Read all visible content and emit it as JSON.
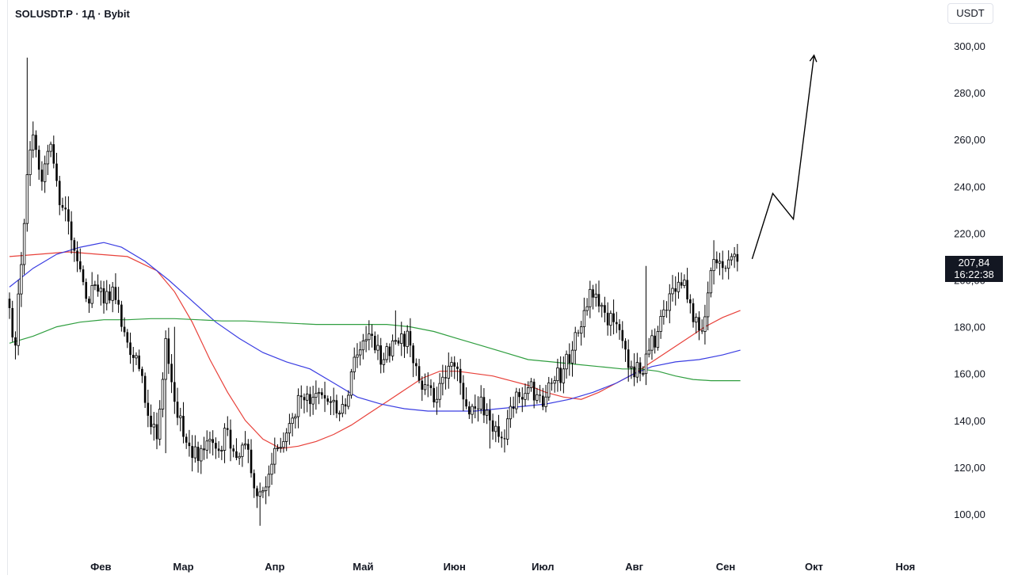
{
  "header": {
    "symbol_title": "SOLUSDT.P · 1Д · Bybit",
    "currency_button": "USDT"
  },
  "price_badge": {
    "price": "207,84",
    "countdown": "16:22:38"
  },
  "colors": {
    "candle": "#000000",
    "ma_red": "#e8413a",
    "ma_blue": "#3a3de2",
    "ma_green": "#2f9e3f",
    "projection": "#000000",
    "badge_bg": "#131722"
  },
  "chart_data": {
    "type": "candlestick",
    "symbol": "SOLUSDT.P",
    "interval": "1Д",
    "exchange": "Bybit",
    "y_axis": {
      "ticks": [
        100,
        120,
        140,
        160,
        180,
        200,
        220,
        240,
        260,
        280,
        300
      ],
      "tick_labels": [
        "100,00",
        "120,00",
        "140,00",
        "160,00",
        "180,00",
        "200,00",
        "220,00",
        "240,00",
        "260,00",
        "280,00",
        "300,00"
      ],
      "ylim": [
        89,
        318
      ]
    },
    "x_axis": {
      "labels": [
        "Фев",
        "Мар",
        "Апр",
        "Май",
        "Июн",
        "Июл",
        "Авг",
        "Сен",
        "Окт",
        "Ноя"
      ],
      "label_days": [
        31,
        59,
        90,
        120,
        151,
        181,
        212,
        243,
        273,
        304
      ],
      "xlim": [
        0,
        330
      ]
    },
    "last_price": 207.84,
    "close_anchors": [
      [
        0,
        188
      ],
      [
        2,
        172
      ],
      [
        6,
        245
      ],
      [
        8,
        262
      ],
      [
        11,
        242
      ],
      [
        14,
        258
      ],
      [
        17,
        232
      ],
      [
        20,
        225
      ],
      [
        23,
        208
      ],
      [
        26,
        192
      ],
      [
        29,
        198
      ],
      [
        32,
        190
      ],
      [
        35,
        197
      ],
      [
        38,
        180
      ],
      [
        41,
        168
      ],
      [
        44,
        162
      ],
      [
        47,
        142
      ],
      [
        50,
        132
      ],
      [
        53,
        175
      ],
      [
        56,
        148
      ],
      [
        59,
        133
      ],
      [
        62,
        124
      ],
      [
        65,
        128
      ],
      [
        68,
        132
      ],
      [
        71,
        127
      ],
      [
        74,
        136
      ],
      [
        77,
        124
      ],
      [
        80,
        130
      ],
      [
        83,
        111
      ],
      [
        86,
        110
      ],
      [
        88,
        117
      ],
      [
        90,
        128
      ],
      [
        93,
        131
      ],
      [
        96,
        141
      ],
      [
        99,
        150
      ],
      [
        102,
        147
      ],
      [
        105,
        152
      ],
      [
        108,
        148
      ],
      [
        111,
        143
      ],
      [
        114,
        146
      ],
      [
        117,
        167
      ],
      [
        120,
        174
      ],
      [
        122,
        177
      ],
      [
        124,
        170
      ],
      [
        127,
        166
      ],
      [
        130,
        174
      ],
      [
        133,
        177
      ],
      [
        136,
        172
      ],
      [
        139,
        157
      ],
      [
        142,
        155
      ],
      [
        145,
        149
      ],
      [
        148,
        158
      ],
      [
        151,
        163
      ],
      [
        154,
        149
      ],
      [
        157,
        146
      ],
      [
        160,
        150
      ],
      [
        163,
        140
      ],
      [
        166,
        133
      ],
      [
        168,
        132
      ],
      [
        170,
        146
      ],
      [
        173,
        150
      ],
      [
        176,
        154
      ],
      [
        179,
        151
      ],
      [
        182,
        150
      ],
      [
        185,
        157
      ],
      [
        188,
        162
      ],
      [
        191,
        170
      ],
      [
        194,
        180
      ],
      [
        197,
        196
      ],
      [
        199,
        194
      ],
      [
        202,
        186
      ],
      [
        205,
        182
      ],
      [
        208,
        174
      ],
      [
        211,
        163
      ],
      [
        214,
        160
      ],
      [
        217,
        170
      ],
      [
        220,
        178
      ],
      [
        223,
        187
      ],
      [
        226,
        195
      ],
      [
        229,
        200
      ],
      [
        232,
        182
      ],
      [
        235,
        178
      ],
      [
        238,
        204
      ],
      [
        241,
        208
      ],
      [
        243,
        205
      ],
      [
        245,
        210
      ],
      [
        247,
        207.84
      ]
    ],
    "highs_lows_note": "each candle spans ±~3.5 around body",
    "extreme_highs": [
      [
        6,
        295
      ],
      [
        56,
        180
      ],
      [
        131,
        187
      ],
      [
        216,
        206
      ],
      [
        239,
        217
      ]
    ],
    "extreme_lows": [
      [
        85,
        95
      ],
      [
        163,
        128
      ],
      [
        213,
        156
      ],
      [
        53,
        126
      ]
    ],
    "moving_averages": [
      {
        "color_key": "ma_red",
        "points": [
          [
            0,
            210
          ],
          [
            10,
            211
          ],
          [
            20,
            212
          ],
          [
            30,
            211
          ],
          [
            40,
            210
          ],
          [
            50,
            204
          ],
          [
            56,
            195
          ],
          [
            62,
            182
          ],
          [
            68,
            166
          ],
          [
            74,
            152
          ],
          [
            80,
            140
          ],
          [
            86,
            132
          ],
          [
            92,
            128
          ],
          [
            98,
            129
          ],
          [
            104,
            131
          ],
          [
            110,
            134
          ],
          [
            116,
            138
          ],
          [
            122,
            143
          ],
          [
            128,
            148
          ],
          [
            134,
            153
          ],
          [
            140,
            158
          ],
          [
            146,
            161
          ],
          [
            152,
            161
          ],
          [
            158,
            160
          ],
          [
            164,
            159
          ],
          [
            170,
            157
          ],
          [
            176,
            155
          ],
          [
            182,
            152
          ],
          [
            188,
            150
          ],
          [
            194,
            149
          ],
          [
            200,
            152
          ],
          [
            206,
            156
          ],
          [
            212,
            160
          ],
          [
            218,
            165
          ],
          [
            224,
            170
          ],
          [
            230,
            175
          ],
          [
            236,
            180
          ],
          [
            242,
            184
          ],
          [
            248,
            187
          ]
        ]
      },
      {
        "color_key": "ma_blue",
        "points": [
          [
            0,
            197
          ],
          [
            8,
            205
          ],
          [
            16,
            211
          ],
          [
            24,
            214
          ],
          [
            32,
            216
          ],
          [
            38,
            214
          ],
          [
            46,
            208
          ],
          [
            54,
            200
          ],
          [
            62,
            191
          ],
          [
            70,
            182
          ],
          [
            78,
            175
          ],
          [
            86,
            169
          ],
          [
            94,
            165
          ],
          [
            102,
            162
          ],
          [
            110,
            156
          ],
          [
            118,
            150
          ],
          [
            126,
            147
          ],
          [
            134,
            145
          ],
          [
            142,
            144
          ],
          [
            150,
            144
          ],
          [
            158,
            144
          ],
          [
            166,
            145
          ],
          [
            174,
            146
          ],
          [
            182,
            147
          ],
          [
            190,
            149
          ],
          [
            198,
            152
          ],
          [
            206,
            156
          ],
          [
            212,
            160
          ],
          [
            218,
            163
          ],
          [
            226,
            165
          ],
          [
            234,
            166
          ],
          [
            242,
            168
          ],
          [
            248,
            170
          ]
        ]
      },
      {
        "color_key": "ma_green",
        "points": [
          [
            0,
            173
          ],
          [
            8,
            176
          ],
          [
            16,
            180
          ],
          [
            24,
            182
          ],
          [
            32,
            183
          ],
          [
            40,
            183
          ],
          [
            48,
            183.5
          ],
          [
            56,
            183.5
          ],
          [
            64,
            183
          ],
          [
            72,
            182.5
          ],
          [
            80,
            182.5
          ],
          [
            88,
            182
          ],
          [
            96,
            181.5
          ],
          [
            104,
            181
          ],
          [
            112,
            181
          ],
          [
            120,
            181
          ],
          [
            128,
            181
          ],
          [
            136,
            180
          ],
          [
            144,
            178
          ],
          [
            152,
            175
          ],
          [
            160,
            172
          ],
          [
            168,
            169
          ],
          [
            176,
            166
          ],
          [
            184,
            165
          ],
          [
            192,
            164
          ],
          [
            200,
            163
          ],
          [
            208,
            162
          ],
          [
            214,
            162
          ],
          [
            220,
            161
          ],
          [
            226,
            159
          ],
          [
            232,
            157.5
          ],
          [
            238,
            157
          ],
          [
            244,
            157
          ],
          [
            248,
            157
          ]
        ]
      }
    ],
    "projection": [
      [
        252,
        209
      ],
      [
        259,
        237
      ],
      [
        266,
        226
      ],
      [
        273,
        296
      ]
    ]
  }
}
